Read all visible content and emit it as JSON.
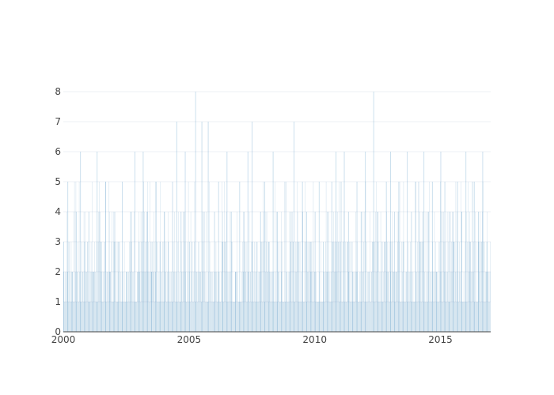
{
  "chart_data": {
    "type": "bar",
    "title": "",
    "xlabel": "",
    "ylabel": "",
    "x_range": [
      "2000-01-01",
      "2016-12-31"
    ],
    "ylim": [
      0,
      8
    ],
    "x_ticks": [
      "2000",
      "2005",
      "2010",
      "2015"
    ],
    "y_ticks": [
      "0",
      "1",
      "2",
      "3",
      "4",
      "5",
      "6",
      "7",
      "8"
    ],
    "grid": true,
    "legend": "none",
    "bar_color": "#1f77b4",
    "series": [
      {
        "values": [
          {
            "x": "2000-01-01",
            "y": 3
          },
          {
            "x": "2000-03-01",
            "y": 5
          },
          {
            "x": "2000-05-01",
            "y": 2
          },
          {
            "x": "2000-07-01",
            "y": 4
          },
          {
            "x": "2000-09-01",
            "y": 6
          },
          {
            "x": "2000-11-01",
            "y": 3
          },
          {
            "x": "2001-01-01",
            "y": 4
          },
          {
            "x": "2001-03-01",
            "y": 2
          },
          {
            "x": "2001-05-01",
            "y": 6
          },
          {
            "x": "2001-07-01",
            "y": 3
          },
          {
            "x": "2001-09-01",
            "y": 5
          },
          {
            "x": "2001-11-01",
            "y": 2
          },
          {
            "x": "2002-01-01",
            "y": 4
          },
          {
            "x": "2002-03-01",
            "y": 3
          },
          {
            "x": "2002-05-01",
            "y": 5
          },
          {
            "x": "2002-07-01",
            "y": 2
          },
          {
            "x": "2002-09-01",
            "y": 4
          },
          {
            "x": "2002-11-01",
            "y": 6
          },
          {
            "x": "2003-01-01",
            "y": 3
          },
          {
            "x": "2003-03-01",
            "y": 6
          },
          {
            "x": "2003-05-01",
            "y": 4
          },
          {
            "x": "2003-07-01",
            "y": 2
          },
          {
            "x": "2003-09-01",
            "y": 5
          },
          {
            "x": "2003-11-01",
            "y": 3
          },
          {
            "x": "2004-01-01",
            "y": 4
          },
          {
            "x": "2004-03-01",
            "y": 3
          },
          {
            "x": "2004-05-01",
            "y": 5
          },
          {
            "x": "2004-07-01",
            "y": 7
          },
          {
            "x": "2004-09-01",
            "y": 4
          },
          {
            "x": "2004-11-01",
            "y": 6
          },
          {
            "x": "2005-01-01",
            "y": 3
          },
          {
            "x": "2005-04-01",
            "y": 8
          },
          {
            "x": "2005-07-01",
            "y": 7
          },
          {
            "x": "2005-10-01",
            "y": 7
          },
          {
            "x": "2006-01-01",
            "y": 4
          },
          {
            "x": "2006-03-01",
            "y": 5
          },
          {
            "x": "2006-05-01",
            "y": 3
          },
          {
            "x": "2006-07-01",
            "y": 6
          },
          {
            "x": "2006-09-01",
            "y": 4
          },
          {
            "x": "2006-11-01",
            "y": 2
          },
          {
            "x": "2007-01-01",
            "y": 5
          },
          {
            "x": "2007-03-01",
            "y": 4
          },
          {
            "x": "2007-05-01",
            "y": 6
          },
          {
            "x": "2007-07-01",
            "y": 7
          },
          {
            "x": "2007-09-01",
            "y": 3
          },
          {
            "x": "2007-11-01",
            "y": 4
          },
          {
            "x": "2008-01-01",
            "y": 5
          },
          {
            "x": "2008-03-01",
            "y": 3
          },
          {
            "x": "2008-05-01",
            "y": 6
          },
          {
            "x": "2008-07-01",
            "y": 4
          },
          {
            "x": "2008-09-01",
            "y": 2
          },
          {
            "x": "2008-11-01",
            "y": 5
          },
          {
            "x": "2009-01-01",
            "y": 4
          },
          {
            "x": "2009-03-01",
            "y": 7
          },
          {
            "x": "2009-05-01",
            "y": 3
          },
          {
            "x": "2009-07-01",
            "y": 5
          },
          {
            "x": "2009-09-01",
            "y": 4
          },
          {
            "x": "2009-11-01",
            "y": 2
          },
          {
            "x": "2010-01-01",
            "y": 4
          },
          {
            "x": "2010-03-01",
            "y": 5
          },
          {
            "x": "2010-05-01",
            "y": 3
          },
          {
            "x": "2010-07-01",
            "y": 4
          },
          {
            "x": "2010-09-01",
            "y": 5
          },
          {
            "x": "2010-11-01",
            "y": 6
          },
          {
            "x": "2011-01-01",
            "y": 3
          },
          {
            "x": "2011-03-01",
            "y": 6
          },
          {
            "x": "2011-05-01",
            "y": 4
          },
          {
            "x": "2011-07-01",
            "y": 2
          },
          {
            "x": "2011-09-01",
            "y": 5
          },
          {
            "x": "2011-11-01",
            "y": 4
          },
          {
            "x": "2012-01-01",
            "y": 6
          },
          {
            "x": "2012-05-01",
            "y": 8
          },
          {
            "x": "2012-07-01",
            "y": 4
          },
          {
            "x": "2012-09-01",
            "y": 3
          },
          {
            "x": "2012-11-01",
            "y": 5
          },
          {
            "x": "2013-01-01",
            "y": 6
          },
          {
            "x": "2013-03-01",
            "y": 4
          },
          {
            "x": "2013-05-01",
            "y": 5
          },
          {
            "x": "2013-07-01",
            "y": 3
          },
          {
            "x": "2013-09-01",
            "y": 6
          },
          {
            "x": "2013-11-01",
            "y": 4
          },
          {
            "x": "2014-01-01",
            "y": 5
          },
          {
            "x": "2014-03-01",
            "y": 3
          },
          {
            "x": "2014-05-01",
            "y": 6
          },
          {
            "x": "2014-07-01",
            "y": 4
          },
          {
            "x": "2014-09-01",
            "y": 5
          },
          {
            "x": "2014-11-01",
            "y": 2
          },
          {
            "x": "2015-01-01",
            "y": 6
          },
          {
            "x": "2015-03-01",
            "y": 5
          },
          {
            "x": "2015-05-01",
            "y": 4
          },
          {
            "x": "2015-07-01",
            "y": 3
          },
          {
            "x": "2015-09-01",
            "y": 5
          },
          {
            "x": "2015-11-01",
            "y": 4
          },
          {
            "x": "2016-01-01",
            "y": 6
          },
          {
            "x": "2016-03-01",
            "y": 3
          },
          {
            "x": "2016-05-01",
            "y": 5
          },
          {
            "x": "2016-07-01",
            "y": 4
          },
          {
            "x": "2016-09-01",
            "y": 6
          },
          {
            "x": "2016-11-01",
            "y": 3
          }
        ]
      }
    ]
  }
}
